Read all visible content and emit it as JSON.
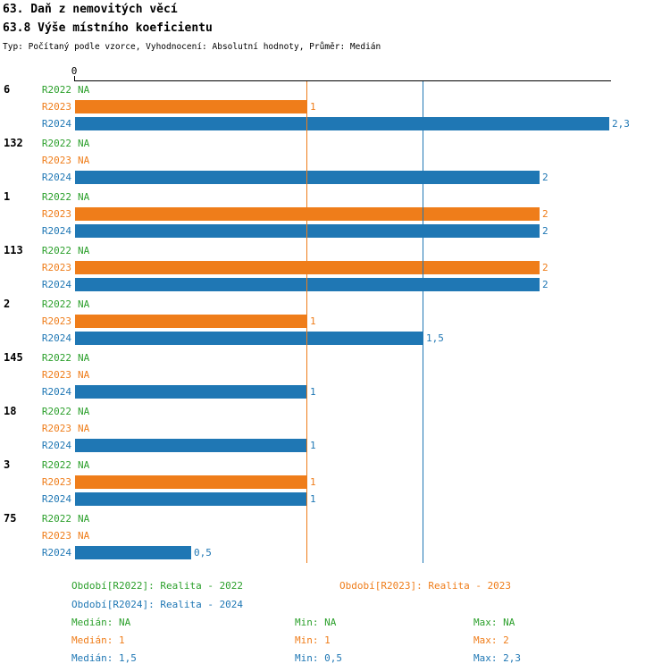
{
  "header": {
    "title_line1": "63. Daň z nemovitých věcí",
    "title_line2": "63.8 Výše místního koeficientu",
    "subtitle": "Typ: Počítaný podle vzorce, Vyhodnocení: Absolutní hodnoty, Průměr: Medián"
  },
  "colors": {
    "r2022": "#2ca02c",
    "r2023": "#ef7d1a",
    "r2024": "#1f77b4",
    "axis": "#000000"
  },
  "chart_data": {
    "type": "bar",
    "orientation": "horizontal",
    "x_axis": {
      "zero_label": "0",
      "min": 0,
      "max": 2.3
    },
    "series": [
      "R2022",
      "R2023",
      "R2024"
    ],
    "groups": [
      {
        "label": "6",
        "values": [
          null,
          1,
          2.3
        ],
        "displays": [
          "NA",
          "1",
          "2,3"
        ]
      },
      {
        "label": "132",
        "values": [
          null,
          null,
          2
        ],
        "displays": [
          "NA",
          "NA",
          "2"
        ]
      },
      {
        "label": "1",
        "values": [
          null,
          2,
          2
        ],
        "displays": [
          "NA",
          "2",
          "2"
        ]
      },
      {
        "label": "113",
        "values": [
          null,
          2,
          2
        ],
        "displays": [
          "NA",
          "2",
          "2"
        ]
      },
      {
        "label": "2",
        "values": [
          null,
          1,
          1.5
        ],
        "displays": [
          "NA",
          "1",
          "1,5"
        ]
      },
      {
        "label": "145",
        "values": [
          null,
          null,
          1
        ],
        "displays": [
          "NA",
          "NA",
          "1"
        ]
      },
      {
        "label": "18",
        "values": [
          null,
          null,
          1
        ],
        "displays": [
          "NA",
          "NA",
          "1"
        ]
      },
      {
        "label": "3",
        "values": [
          null,
          1,
          1
        ],
        "displays": [
          "NA",
          "1",
          "1"
        ]
      },
      {
        "label": "75",
        "values": [
          null,
          null,
          0.5
        ],
        "displays": [
          "NA",
          "NA",
          "0,5"
        ]
      }
    ],
    "median_lines": [
      {
        "series": "R2023",
        "value": 1
      },
      {
        "series": "R2024",
        "value": 1.5
      }
    ],
    "grid": "off",
    "legend_position": "bottom"
  },
  "legend": {
    "r2022": "Období[R2022]: Realita - 2022",
    "r2023": "Období[R2023]: Realita - 2023",
    "r2024": "Období[R2024]: Realita - 2024"
  },
  "stats": {
    "r2022": {
      "median": "Medián: NA",
      "min": "Min: NA",
      "max": "Max: NA"
    },
    "r2023": {
      "median": "Medián: 1",
      "min": "Min: 1",
      "max": "Max: 2"
    },
    "r2024": {
      "median": "Medián: 1,5",
      "min": "Min: 0,5",
      "max": "Max: 2,3"
    }
  }
}
